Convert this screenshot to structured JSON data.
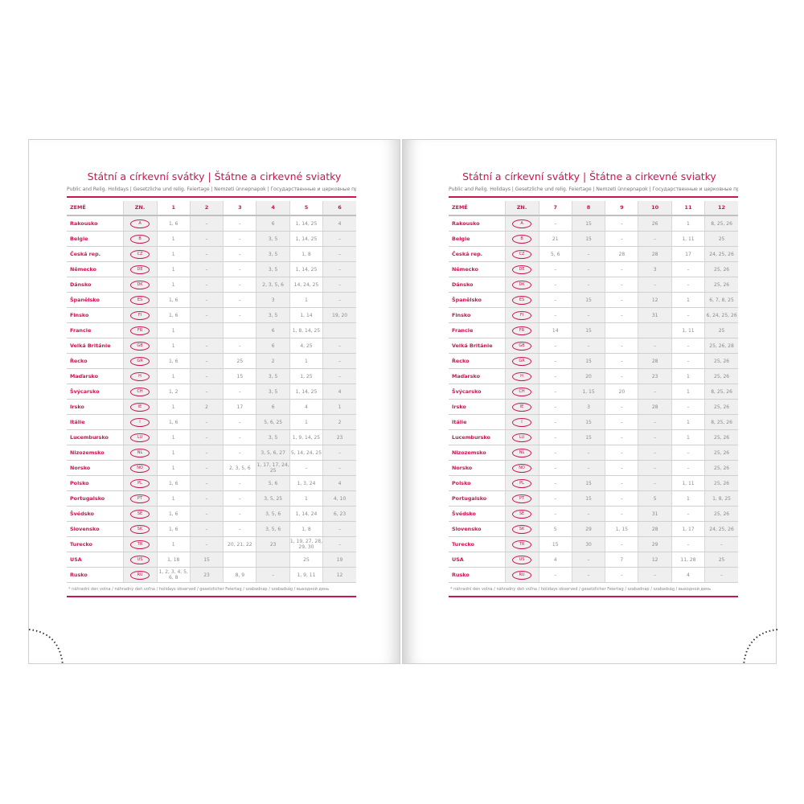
{
  "title": "Státní a církevní svátky | Štátne a cirkevné sviatky",
  "subtitle": "Public and Relig. Holidays | Gesetzliche und relig. Feiertage | Nemzeti ünnepnapok | Государственные и церковные праздники",
  "footnote": "* náhradní den volna / náhradný deň voľna / holidays observed / gesetzlicher Feiertag / szabadnap / szabadság / выходной день",
  "header": {
    "country": "ZEMĚ",
    "code": "ZN."
  },
  "colors": {
    "accent": "#c8174f",
    "shade": "#efefef"
  },
  "left": {
    "months": [
      "1",
      "2",
      "3",
      "4",
      "5",
      "6"
    ],
    "rows": [
      {
        "country": "Rakousko",
        "code": "A",
        "cells": [
          "1, 6",
          "–",
          "–",
          "6",
          "1, 14, 25",
          "4"
        ]
      },
      {
        "country": "Belgie",
        "code": "B",
        "cells": [
          "1",
          "–",
          "–",
          "3, 5",
          "1, 14, 25",
          "–"
        ]
      },
      {
        "country": "Česká rep.",
        "code": "CZ",
        "cells": [
          "1",
          "–",
          "–",
          "3, 5",
          "1, 8",
          "–"
        ]
      },
      {
        "country": "Německo",
        "code": "DE",
        "cells": [
          "1",
          "–",
          "–",
          "3, 5",
          "1, 14, 25",
          "–"
        ]
      },
      {
        "country": "Dánsko",
        "code": "DK",
        "cells": [
          "1",
          "–",
          "–",
          "2, 3, 5, 6",
          "14, 24, 25",
          "–"
        ]
      },
      {
        "country": "Španělsko",
        "code": "ES",
        "cells": [
          "1, 6",
          "–",
          "–",
          "3",
          "1",
          "–"
        ]
      },
      {
        "country": "Finsko",
        "code": "FI",
        "cells": [
          "1, 6",
          "–",
          "–",
          "3, 5",
          "1, 14",
          "19, 20"
        ]
      },
      {
        "country": "Francie",
        "code": "FR",
        "cells": [
          "1",
          "",
          "",
          "6",
          "1, 8, 14, 25",
          ""
        ]
      },
      {
        "country": "Velká Británie",
        "code": "GB",
        "cells": [
          "1",
          "–",
          "–",
          "6",
          "4, 25",
          "–"
        ]
      },
      {
        "country": "Řecko",
        "code": "GR",
        "cells": [
          "1, 6",
          "–",
          "25",
          "2",
          "1",
          "–"
        ]
      },
      {
        "country": "Maďarsko",
        "code": "H",
        "cells": [
          "1",
          "–",
          "15",
          "3, 5",
          "1, 25",
          "–"
        ]
      },
      {
        "country": "Švýcarsko",
        "code": "CH",
        "cells": [
          "1, 2",
          "–",
          "–",
          "3, 5",
          "1, 14, 25",
          "4"
        ]
      },
      {
        "country": "Irsko",
        "code": "IE",
        "cells": [
          "1",
          "2",
          "17",
          "6",
          "4",
          "1"
        ]
      },
      {
        "country": "Itálie",
        "code": "I",
        "cells": [
          "1, 6",
          "–",
          "–",
          "5, 6, 25",
          "1",
          "2"
        ]
      },
      {
        "country": "Lucembursko",
        "code": "LU",
        "cells": [
          "1",
          "–",
          "–",
          "3, 5",
          "1, 9, 14, 25",
          "23"
        ]
      },
      {
        "country": "Nizozemsko",
        "code": "NL",
        "cells": [
          "1",
          "–",
          "–",
          "3, 5, 6, 27",
          "5, 14, 24, 25",
          "–"
        ]
      },
      {
        "country": "Norsko",
        "code": "NO",
        "cells": [
          "1",
          "–",
          "2, 3, 5, 6",
          "1, 17, 17, 24, 25",
          "–",
          "–"
        ]
      },
      {
        "country": "Polsko",
        "code": "PL",
        "cells": [
          "1, 6",
          "–",
          "–",
          "5, 6",
          "1, 3, 24",
          "4"
        ]
      },
      {
        "country": "Portugalsko",
        "code": "PT",
        "cells": [
          "1",
          "–",
          "–",
          "3, 5, 25",
          "1",
          "4, 10"
        ]
      },
      {
        "country": "Švédsko",
        "code": "SE",
        "cells": [
          "1, 6",
          "–",
          "–",
          "3, 5, 6",
          "1, 14, 24",
          "6, 23"
        ]
      },
      {
        "country": "Slovensko",
        "code": "SK",
        "cells": [
          "1, 6",
          "–",
          "–",
          "3, 5, 6",
          "1, 8",
          "–"
        ]
      },
      {
        "country": "Turecko",
        "code": "TR",
        "cells": [
          "1",
          "–",
          "20, 21, 22",
          "23",
          "1, 19, 27, 28, 29, 30",
          "–"
        ]
      },
      {
        "country": "USA",
        "code": "US",
        "cells": [
          "1, 18",
          "15",
          "",
          "",
          "25",
          "19"
        ]
      },
      {
        "country": "Rusko",
        "code": "RU",
        "cells": [
          "1, 2, 3, 4, 5, 6, 8",
          "23",
          "8, 9",
          "–",
          "1, 9, 11",
          "12"
        ]
      }
    ]
  },
  "right": {
    "months": [
      "7",
      "8",
      "9",
      "10",
      "11",
      "12"
    ],
    "rows": [
      {
        "country": "Rakousko",
        "code": "A",
        "cells": [
          "–",
          "15",
          "–",
          "26",
          "1",
          "8, 25, 26"
        ]
      },
      {
        "country": "Belgie",
        "code": "B",
        "cells": [
          "21",
          "15",
          "–",
          "–",
          "1, 11",
          "25"
        ]
      },
      {
        "country": "Česká rep.",
        "code": "CZ",
        "cells": [
          "5, 6",
          "–",
          "28",
          "28",
          "17",
          "24, 25, 26"
        ]
      },
      {
        "country": "Německo",
        "code": "DE",
        "cells": [
          "–",
          "–",
          "–",
          "3",
          "–",
          "25, 26"
        ]
      },
      {
        "country": "Dánsko",
        "code": "DK",
        "cells": [
          "–",
          "–",
          "–",
          "–",
          "–",
          "25, 26"
        ]
      },
      {
        "country": "Španělsko",
        "code": "ES",
        "cells": [
          "–",
          "15",
          "–",
          "12",
          "1",
          "6, 7, 8, 25"
        ]
      },
      {
        "country": "Finsko",
        "code": "FI",
        "cells": [
          "–",
          "–",
          "–",
          "31",
          "–",
          "6, 24, 25, 26"
        ]
      },
      {
        "country": "Francie",
        "code": "FR",
        "cells": [
          "14",
          "15",
          "",
          "",
          "1, 11",
          "25"
        ]
      },
      {
        "country": "Velká Británie",
        "code": "GB",
        "cells": [
          "–",
          "–",
          "–",
          "–",
          "–",
          "25, 26, 28"
        ]
      },
      {
        "country": "Řecko",
        "code": "GR",
        "cells": [
          "–",
          "15",
          "–",
          "28",
          "–",
          "25, 26"
        ]
      },
      {
        "country": "Maďarsko",
        "code": "H",
        "cells": [
          "–",
          "20",
          "–",
          "23",
          "1",
          "25, 26"
        ]
      },
      {
        "country": "Švýcarsko",
        "code": "CH",
        "cells": [
          "–",
          "1, 15",
          "20",
          "–",
          "1",
          "8, 25, 26"
        ]
      },
      {
        "country": "Irsko",
        "code": "IE",
        "cells": [
          "–",
          "3",
          "–",
          "28",
          "–",
          "25, 26"
        ]
      },
      {
        "country": "Itálie",
        "code": "I",
        "cells": [
          "–",
          "15",
          "–",
          "–",
          "1",
          "8, 25, 26"
        ]
      },
      {
        "country": "Lucembursko",
        "code": "LU",
        "cells": [
          "–",
          "15",
          "–",
          "–",
          "1",
          "25, 26"
        ]
      },
      {
        "country": "Nizozemsko",
        "code": "NL",
        "cells": [
          "–",
          "–",
          "–",
          "–",
          "–",
          "25, 26"
        ]
      },
      {
        "country": "Norsko",
        "code": "NO",
        "cells": [
          "–",
          "–",
          "–",
          "–",
          "–",
          "25, 26"
        ]
      },
      {
        "country": "Polsko",
        "code": "PL",
        "cells": [
          "–",
          "15",
          "–",
          "–",
          "1, 11",
          "25, 26"
        ]
      },
      {
        "country": "Portugalsko",
        "code": "PT",
        "cells": [
          "–",
          "15",
          "–",
          "5",
          "1",
          "1, 8, 25"
        ]
      },
      {
        "country": "Švédsko",
        "code": "SE",
        "cells": [
          "–",
          "–",
          "–",
          "31",
          "–",
          "25, 26"
        ]
      },
      {
        "country": "Slovensko",
        "code": "SK",
        "cells": [
          "5",
          "29",
          "1, 15",
          "28",
          "1, 17",
          "24, 25, 26"
        ]
      },
      {
        "country": "Turecko",
        "code": "TR",
        "cells": [
          "15",
          "30",
          "–",
          "29",
          "–",
          "–"
        ]
      },
      {
        "country": "USA",
        "code": "US",
        "cells": [
          "4",
          "–",
          "7",
          "12",
          "11, 28",
          "25"
        ]
      },
      {
        "country": "Rusko",
        "code": "RU",
        "cells": [
          "–",
          "–",
          "–",
          "–",
          "4",
          "–"
        ]
      }
    ]
  }
}
